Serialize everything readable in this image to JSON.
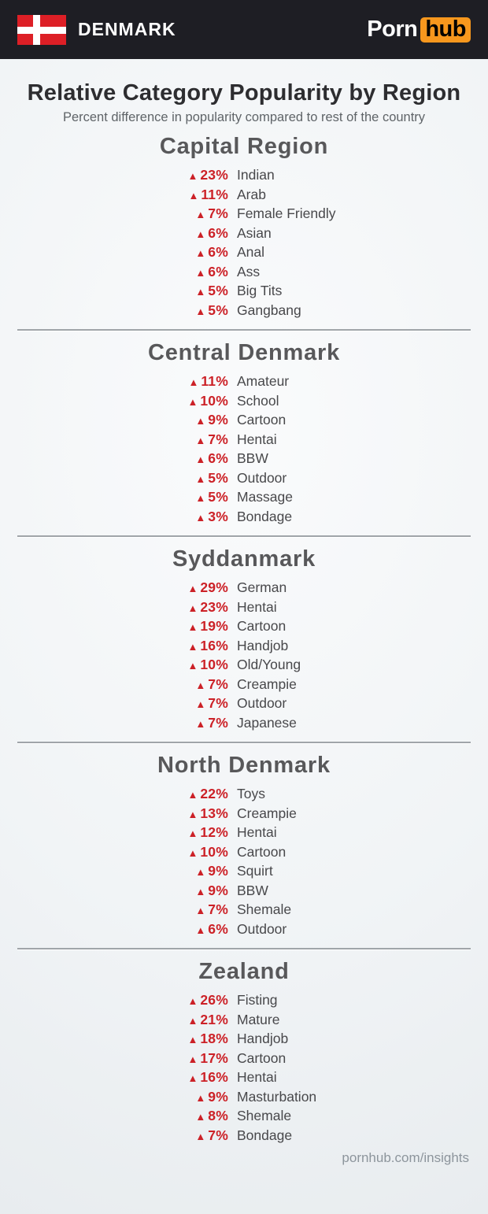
{
  "header": {
    "country": "DENMARK",
    "brand": {
      "porn": "Porn",
      "hub": "hub"
    }
  },
  "title": "Relative Category Popularity by Region",
  "subtitle": "Percent difference in popularity compared to rest of the country",
  "icons": {
    "up_triangle": "▲"
  },
  "colors": {
    "accent_red": "#cc2127",
    "heading_gray": "#58585a",
    "header_bg": "#1e1e24",
    "brand_orange": "#f7971d",
    "flag_red": "#dd1f26"
  },
  "sections": [
    {
      "name": "Capital Region",
      "items": [
        {
          "value": "23%",
          "label": "Indian"
        },
        {
          "value": "11%",
          "label": "Arab"
        },
        {
          "value": "7%",
          "label": "Female Friendly"
        },
        {
          "value": "6%",
          "label": "Asian"
        },
        {
          "value": "6%",
          "label": "Anal"
        },
        {
          "value": "6%",
          "label": "Ass"
        },
        {
          "value": "5%",
          "label": "Big Tits"
        },
        {
          "value": "5%",
          "label": "Gangbang"
        }
      ]
    },
    {
      "name": "Central Denmark",
      "items": [
        {
          "value": "11%",
          "label": "Amateur"
        },
        {
          "value": "10%",
          "label": "School"
        },
        {
          "value": "9%",
          "label": "Cartoon"
        },
        {
          "value": "7%",
          "label": "Hentai"
        },
        {
          "value": "6%",
          "label": "BBW"
        },
        {
          "value": "5%",
          "label": "Outdoor"
        },
        {
          "value": "5%",
          "label": "Massage"
        },
        {
          "value": "3%",
          "label": "Bondage"
        }
      ]
    },
    {
      "name": "Syddanmark",
      "items": [
        {
          "value": "29%",
          "label": "German"
        },
        {
          "value": "23%",
          "label": "Hentai"
        },
        {
          "value": "19%",
          "label": "Cartoon"
        },
        {
          "value": "16%",
          "label": "Handjob"
        },
        {
          "value": "10%",
          "label": "Old/Young"
        },
        {
          "value": "7%",
          "label": "Creampie"
        },
        {
          "value": "7%",
          "label": "Outdoor"
        },
        {
          "value": "7%",
          "label": "Japanese"
        }
      ]
    },
    {
      "name": "North Denmark",
      "items": [
        {
          "value": "22%",
          "label": "Toys"
        },
        {
          "value": "13%",
          "label": "Creampie"
        },
        {
          "value": "12%",
          "label": "Hentai"
        },
        {
          "value": "10%",
          "label": "Cartoon"
        },
        {
          "value": "9%",
          "label": "Squirt"
        },
        {
          "value": "9%",
          "label": "BBW"
        },
        {
          "value": "7%",
          "label": "Shemale"
        },
        {
          "value": "6%",
          "label": "Outdoor"
        }
      ]
    },
    {
      "name": "Zealand",
      "items": [
        {
          "value": "26%",
          "label": "Fisting"
        },
        {
          "value": "21%",
          "label": "Mature"
        },
        {
          "value": "18%",
          "label": "Handjob"
        },
        {
          "value": "17%",
          "label": "Cartoon"
        },
        {
          "value": "16%",
          "label": "Hentai"
        },
        {
          "value": "9%",
          "label": "Masturbation"
        },
        {
          "value": "8%",
          "label": "Shemale"
        },
        {
          "value": "7%",
          "label": "Bondage"
        }
      ]
    }
  ],
  "footer": "pornhub.com/insights",
  "chart_data": {
    "type": "table",
    "title": "Relative Category Popularity by Region",
    "subtitle": "Percent difference in popularity compared to rest of the country",
    "country": "Denmark",
    "unit": "percent above rest of country",
    "direction": "increase",
    "regions": [
      {
        "name": "Capital Region",
        "categories": [
          "Indian",
          "Arab",
          "Female Friendly",
          "Asian",
          "Anal",
          "Ass",
          "Big Tits",
          "Gangbang"
        ],
        "values": [
          23,
          11,
          7,
          6,
          6,
          6,
          5,
          5
        ]
      },
      {
        "name": "Central Denmark",
        "categories": [
          "Amateur",
          "School",
          "Cartoon",
          "Hentai",
          "BBW",
          "Outdoor",
          "Massage",
          "Bondage"
        ],
        "values": [
          11,
          10,
          9,
          7,
          6,
          5,
          5,
          3
        ]
      },
      {
        "name": "Syddanmark",
        "categories": [
          "German",
          "Hentai",
          "Cartoon",
          "Handjob",
          "Old/Young",
          "Creampie",
          "Outdoor",
          "Japanese"
        ],
        "values": [
          29,
          23,
          19,
          16,
          10,
          7,
          7,
          7
        ]
      },
      {
        "name": "North Denmark",
        "categories": [
          "Toys",
          "Creampie",
          "Hentai",
          "Cartoon",
          "Squirt",
          "BBW",
          "Shemale",
          "Outdoor"
        ],
        "values": [
          22,
          13,
          12,
          10,
          9,
          9,
          7,
          6
        ]
      },
      {
        "name": "Zealand",
        "categories": [
          "Fisting",
          "Mature",
          "Handjob",
          "Cartoon",
          "Hentai",
          "Masturbation",
          "Shemale",
          "Bondage"
        ],
        "values": [
          26,
          21,
          18,
          17,
          16,
          9,
          8,
          7
        ]
      }
    ]
  }
}
